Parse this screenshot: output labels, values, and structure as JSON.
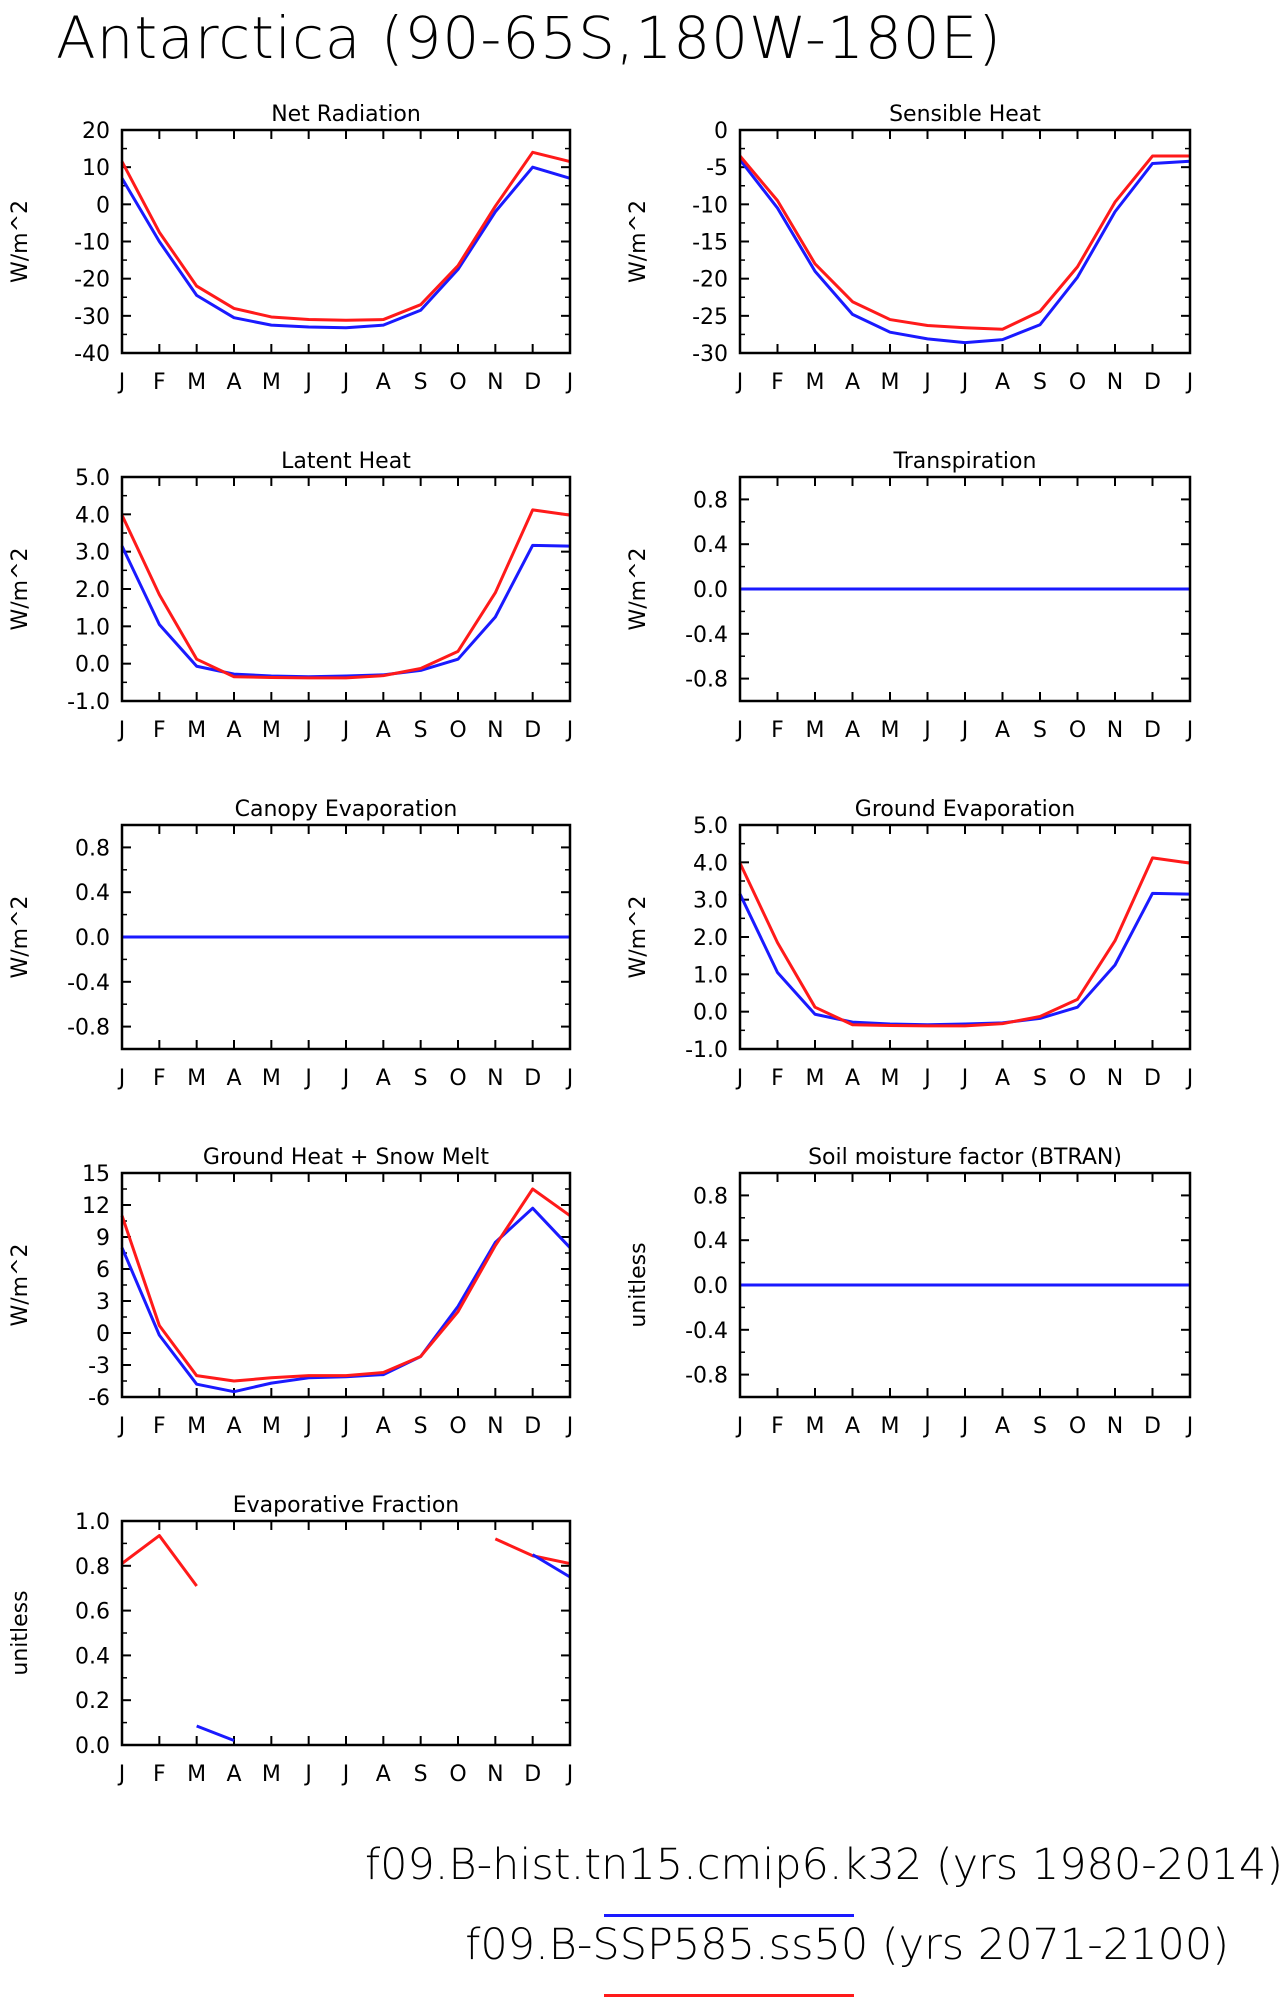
{
  "title": "Antarctica (90-65S,180W-180E)",
  "colors": {
    "case1": "#1a1aff",
    "case2": "#ff1a1a",
    "axis": "#000000"
  },
  "legend": [
    {
      "label": "f09.B-hist.tn15.cmip6.k32 (yrs 1980-2014)",
      "color": "#1a1aff"
    },
    {
      "label": "f09.B-SSP585.ss50 (yrs 2071-2100)",
      "color": "#ff1a1a"
    }
  ],
  "chart_data": [
    {
      "type": "line",
      "title": "Net Radiation",
      "ylabel": "W/m^2",
      "x": [
        "J",
        "F",
        "M",
        "A",
        "M",
        "J",
        "J",
        "A",
        "S",
        "O",
        "N",
        "D",
        "J"
      ],
      "ylim": [
        -40,
        20
      ],
      "yticks": [
        -40,
        -30,
        -20,
        -10,
        0,
        10,
        20
      ],
      "yticklabels": [
        "-40",
        "-30",
        "-20",
        "-10",
        "0",
        "10",
        "20"
      ],
      "series": [
        {
          "color": "#1a1aff",
          "values": [
            7,
            -10,
            -24.5,
            -30.5,
            -32.5,
            -33,
            -33.2,
            -32.5,
            -28.5,
            -17.5,
            -2,
            10,
            7
          ]
        },
        {
          "color": "#ff1a1a",
          "values": [
            11.5,
            -7.5,
            -22,
            -28,
            -30.3,
            -31,
            -31.2,
            -31,
            -27,
            -16.5,
            -0.5,
            14,
            11.5
          ]
        }
      ]
    },
    {
      "type": "line",
      "title": "Sensible Heat",
      "ylabel": "W/m^2",
      "x": [
        "J",
        "F",
        "M",
        "A",
        "M",
        "J",
        "J",
        "A",
        "S",
        "O",
        "N",
        "D",
        "J"
      ],
      "ylim": [
        -30,
        0
      ],
      "yticks": [
        -30,
        -25,
        -20,
        -15,
        -10,
        -5,
        0
      ],
      "yticklabels": [
        "-30",
        "-25",
        "-20",
        "-15",
        "-10",
        "-5",
        "0"
      ],
      "series": [
        {
          "color": "#1a1aff",
          "values": [
            -4,
            -10.5,
            -19,
            -24.8,
            -27.2,
            -28.1,
            -28.6,
            -28.2,
            -26.2,
            -19.8,
            -11,
            -4.5,
            -4.2
          ]
        },
        {
          "color": "#ff1a1a",
          "values": [
            -3.5,
            -9.5,
            -18,
            -23.1,
            -25.5,
            -26.3,
            -26.6,
            -26.8,
            -24.4,
            -18.4,
            -9.7,
            -3.5,
            -3.5
          ]
        }
      ]
    },
    {
      "type": "line",
      "title": "Latent Heat",
      "ylabel": "W/m^2",
      "x": [
        "J",
        "F",
        "M",
        "A",
        "M",
        "J",
        "J",
        "A",
        "S",
        "O",
        "N",
        "D",
        "J"
      ],
      "ylim": [
        -1,
        5
      ],
      "yticks": [
        -1,
        0,
        1,
        2,
        3,
        4,
        5
      ],
      "yticklabels": [
        "-1.0",
        "0.0",
        "1.0",
        "2.0",
        "3.0",
        "4.0",
        "5.0"
      ],
      "series": [
        {
          "color": "#1a1aff",
          "values": [
            3.15,
            1.05,
            -0.07,
            -0.28,
            -0.33,
            -0.35,
            -0.33,
            -0.3,
            -0.18,
            0.12,
            1.25,
            3.17,
            3.15
          ]
        },
        {
          "color": "#ff1a1a",
          "values": [
            3.98,
            1.85,
            0.12,
            -0.35,
            -0.37,
            -0.38,
            -0.38,
            -0.32,
            -0.13,
            0.33,
            1.9,
            4.12,
            3.98
          ]
        }
      ]
    },
    {
      "type": "line",
      "title": "Transpiration",
      "ylabel": "W/m^2",
      "x": [
        "J",
        "F",
        "M",
        "A",
        "M",
        "J",
        "J",
        "A",
        "S",
        "O",
        "N",
        "D",
        "J"
      ],
      "ylim": [
        -1,
        1
      ],
      "yticks": [
        -0.8,
        -0.4,
        0,
        0.4,
        0.8
      ],
      "yticklabels": [
        "-0.8",
        "-0.4",
        "0.0",
        "0.4",
        "0.8"
      ],
      "series": [
        {
          "color": "#ff1a1a",
          "values": [
            0,
            0,
            0,
            0,
            0,
            0,
            0,
            0,
            0,
            0,
            0,
            0,
            0
          ]
        },
        {
          "color": "#1a1aff",
          "values": [
            0,
            0,
            0,
            0,
            0,
            0,
            0,
            0,
            0,
            0,
            0,
            0,
            0
          ]
        }
      ]
    },
    {
      "type": "line",
      "title": "Canopy Evaporation",
      "ylabel": "W/m^2",
      "x": [
        "J",
        "F",
        "M",
        "A",
        "M",
        "J",
        "J",
        "A",
        "S",
        "O",
        "N",
        "D",
        "J"
      ],
      "ylim": [
        -1,
        1
      ],
      "yticks": [
        -0.8,
        -0.4,
        0,
        0.4,
        0.8
      ],
      "yticklabels": [
        "-0.8",
        "-0.4",
        "0.0",
        "0.4",
        "0.8"
      ],
      "series": [
        {
          "color": "#ff1a1a",
          "values": [
            0,
            0,
            0,
            0,
            0,
            0,
            0,
            0,
            0,
            0,
            0,
            0,
            0
          ]
        },
        {
          "color": "#1a1aff",
          "values": [
            0,
            0,
            0,
            0,
            0,
            0,
            0,
            0,
            0,
            0,
            0,
            0,
            0
          ]
        }
      ]
    },
    {
      "type": "line",
      "title": "Ground Evaporation",
      "ylabel": "W/m^2",
      "x": [
        "J",
        "F",
        "M",
        "A",
        "M",
        "J",
        "J",
        "A",
        "S",
        "O",
        "N",
        "D",
        "J"
      ],
      "ylim": [
        -1,
        5
      ],
      "yticks": [
        -1,
        0,
        1,
        2,
        3,
        4,
        5
      ],
      "yticklabels": [
        "-1.0",
        "0.0",
        "1.0",
        "2.0",
        "3.0",
        "4.0",
        "5.0"
      ],
      "series": [
        {
          "color": "#1a1aff",
          "values": [
            3.15,
            1.05,
            -0.07,
            -0.28,
            -0.33,
            -0.35,
            -0.33,
            -0.3,
            -0.18,
            0.12,
            1.25,
            3.17,
            3.15
          ]
        },
        {
          "color": "#ff1a1a",
          "values": [
            3.98,
            1.85,
            0.12,
            -0.35,
            -0.37,
            -0.38,
            -0.38,
            -0.32,
            -0.13,
            0.33,
            1.9,
            4.12,
            3.98
          ]
        }
      ]
    },
    {
      "type": "line",
      "title": "Ground Heat + Snow Melt",
      "ylabel": "W/m^2",
      "x": [
        "J",
        "F",
        "M",
        "A",
        "M",
        "J",
        "J",
        "A",
        "S",
        "O",
        "N",
        "D",
        "J"
      ],
      "ylim": [
        -6,
        15
      ],
      "yticks": [
        -6,
        -3,
        0,
        3,
        6,
        9,
        12,
        15
      ],
      "yticklabels": [
        "-6",
        "-3",
        "0",
        "3",
        "6",
        "9",
        "12",
        "15"
      ],
      "series": [
        {
          "color": "#1a1aff",
          "values": [
            8,
            -0.2,
            -4.8,
            -5.5,
            -4.7,
            -4.2,
            -4.1,
            -3.9,
            -2.2,
            2.5,
            8.5,
            11.7,
            8
          ]
        },
        {
          "color": "#ff1a1a",
          "values": [
            11,
            0.7,
            -4,
            -4.5,
            -4.2,
            -4,
            -4,
            -3.7,
            -2.2,
            2,
            8.2,
            13.5,
            11
          ]
        }
      ]
    },
    {
      "type": "line",
      "title": "Soil moisture factor (BTRAN)",
      "ylabel": "unitless",
      "x": [
        "J",
        "F",
        "M",
        "A",
        "M",
        "J",
        "J",
        "A",
        "S",
        "O",
        "N",
        "D",
        "J"
      ],
      "ylim": [
        -1,
        1
      ],
      "yticks": [
        -0.8,
        -0.4,
        0,
        0.4,
        0.8
      ],
      "yticklabels": [
        "-0.8",
        "-0.4",
        "0.0",
        "0.4",
        "0.8"
      ],
      "series": [
        {
          "color": "#ff1a1a",
          "values": [
            0,
            0,
            0,
            0,
            0,
            0,
            0,
            0,
            0,
            0,
            0,
            0,
            0
          ]
        },
        {
          "color": "#1a1aff",
          "values": [
            0,
            0,
            0,
            0,
            0,
            0,
            0,
            0,
            0,
            0,
            0,
            0,
            0
          ]
        }
      ]
    },
    {
      "type": "line",
      "title": "Evaporative Fraction",
      "ylabel": "unitless",
      "x": [
        "J",
        "F",
        "M",
        "A",
        "M",
        "J",
        "J",
        "A",
        "S",
        "O",
        "N",
        "D",
        "J"
      ],
      "ylim": [
        0,
        1
      ],
      "yticks": [
        0,
        0.2,
        0.4,
        0.6,
        0.8,
        1.0
      ],
      "yticklabels": [
        "0.0",
        "0.2",
        "0.4",
        "0.6",
        "0.8",
        "1.0"
      ],
      "series": [
        {
          "color": "#ff1a1a",
          "values": [
            0.81,
            0.935,
            0.71,
            null,
            null,
            null,
            null,
            null,
            null,
            null,
            0.92,
            0.845,
            0.81
          ]
        },
        {
          "color": "#1a1aff",
          "values": [
            null,
            null,
            0.085,
            0.02,
            null,
            null,
            null,
            null,
            null,
            null,
            null,
            0.85,
            0.75
          ]
        }
      ]
    }
  ]
}
